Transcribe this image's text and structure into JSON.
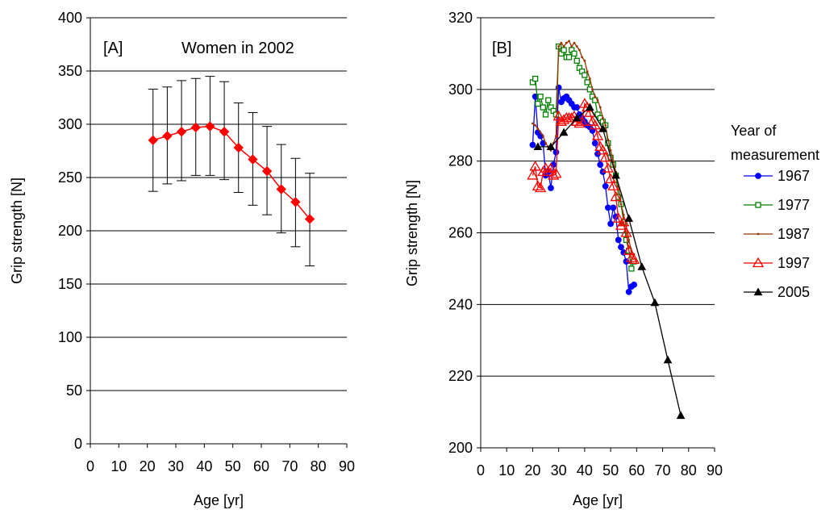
{
  "chart_data": [
    {
      "id": "A",
      "type": "line",
      "panel_label": "[A]",
      "title": "Women in 2002",
      "xlabel": "Age [yr]",
      "ylabel": "Grip strength [N]",
      "xlim": [
        0,
        90
      ],
      "ylim": [
        0,
        400
      ],
      "xticks": [
        0,
        10,
        20,
        30,
        40,
        50,
        60,
        70,
        80,
        90
      ],
      "yticks": [
        0,
        50,
        100,
        150,
        200,
        250,
        300,
        350,
        400
      ],
      "grid": "horizontal",
      "series": [
        {
          "color": "#ff0000",
          "marker": "diamond",
          "points": [
            {
              "x": 22,
              "y": 285,
              "err_low": 237,
              "err_high": 333
            },
            {
              "x": 27,
              "y": 289,
              "err_low": 244,
              "err_high": 335
            },
            {
              "x": 32,
              "y": 293,
              "err_low": 247,
              "err_high": 341
            },
            {
              "x": 37,
              "y": 297,
              "err_low": 252,
              "err_high": 343
            },
            {
              "x": 42,
              "y": 298,
              "err_low": 252,
              "err_high": 345
            },
            {
              "x": 47,
              "y": 293,
              "err_low": 248,
              "err_high": 340
            },
            {
              "x": 52,
              "y": 278,
              "err_low": 236,
              "err_high": 320
            },
            {
              "x": 57,
              "y": 267,
              "err_low": 224,
              "err_high": 311
            },
            {
              "x": 62,
              "y": 256,
              "err_low": 215,
              "err_high": 298
            },
            {
              "x": 67,
              "y": 239,
              "err_low": 198,
              "err_high": 281
            },
            {
              "x": 72,
              "y": 227,
              "err_low": 185,
              "err_high": 268
            },
            {
              "x": 77,
              "y": 211,
              "err_low": 167,
              "err_high": 254
            }
          ]
        }
      ]
    },
    {
      "id": "B",
      "type": "line",
      "panel_label": "[B]",
      "xlabel": "Age [yr]",
      "ylabel": "Grip strength [N]",
      "xlim": [
        0,
        90
      ],
      "ylim": [
        200,
        320
      ],
      "xticks": [
        0,
        10,
        20,
        30,
        40,
        50,
        60,
        70,
        80,
        90
      ],
      "yticks": [
        200,
        220,
        240,
        260,
        280,
        300,
        320
      ],
      "grid": "horizontal",
      "legend_title": "Year of measurement",
      "legend_position": "right",
      "series": [
        {
          "name": "1967",
          "color": "#0000ff",
          "marker": "circle",
          "x": [
            20,
            21,
            22,
            23,
            24,
            25,
            26,
            27,
            28,
            29,
            30,
            31,
            32,
            33,
            34,
            35,
            36,
            37,
            38,
            39,
            40,
            41,
            42,
            43,
            44,
            45,
            46,
            47,
            48,
            49,
            50,
            51,
            52,
            53,
            54,
            55,
            56,
            57,
            58,
            59
          ],
          "y": [
            284.5,
            298,
            288,
            287,
            285,
            276,
            277,
            272.5,
            279,
            282.5,
            300.5,
            296.5,
            297.5,
            298,
            297,
            296,
            295,
            295,
            293,
            292,
            291,
            290,
            289.5,
            288.5,
            285,
            282,
            279,
            277,
            273,
            267,
            262.5,
            267,
            264.5,
            258,
            256,
            254.5,
            252,
            243.5,
            245,
            245.5
          ]
        },
        {
          "name": "1977",
          "color": "#008000",
          "marker": "square",
          "x": [
            20,
            21,
            22,
            23,
            24,
            25,
            26,
            27,
            28,
            29,
            30,
            31,
            32,
            33,
            34,
            35,
            36,
            37,
            38,
            39,
            40,
            41,
            42,
            43,
            44,
            45,
            46,
            47,
            48,
            49,
            50,
            51,
            52,
            53,
            54,
            55,
            56,
            57,
            58,
            59
          ],
          "y": [
            302,
            303,
            296,
            298,
            295,
            293,
            297,
            295,
            294,
            293,
            312,
            310,
            311,
            309,
            309,
            311,
            310,
            308,
            306,
            305,
            304,
            302,
            300,
            298,
            297,
            293,
            292,
            291,
            290,
            285,
            281,
            279,
            276,
            270,
            268,
            263,
            258,
            255,
            250,
            252
          ]
        },
        {
          "name": "1987",
          "color": "#993300",
          "marker": "dot",
          "x": [
            20,
            21,
            22,
            23,
            24,
            25,
            26,
            27,
            28,
            29,
            30,
            31,
            32,
            33,
            34,
            35,
            36,
            37,
            38,
            39,
            40,
            41,
            42,
            43,
            44,
            45,
            46,
            47,
            48,
            49,
            50,
            51,
            52,
            53,
            54,
            55,
            56,
            57,
            58,
            59
          ],
          "y": [
            290.5,
            290,
            289,
            288,
            287,
            285,
            284,
            283,
            285,
            287,
            312,
            313,
            312,
            313,
            313.5,
            312,
            313,
            312,
            311,
            309,
            308,
            305,
            303,
            300,
            298,
            297,
            295,
            292,
            290,
            286,
            283,
            280,
            277,
            273,
            268,
            265,
            262,
            258,
            255,
            254
          ]
        },
        {
          "name": "1997",
          "color": "#ff0000",
          "marker": "triangle-open",
          "x": [
            20,
            21,
            22,
            23,
            24,
            25,
            26,
            27,
            28,
            29,
            30,
            31,
            32,
            33,
            34,
            35,
            36,
            37,
            38,
            39,
            40,
            41,
            42,
            43,
            44,
            45,
            46,
            47,
            48,
            49,
            50,
            51,
            52,
            53,
            54,
            55,
            56,
            57,
            58,
            59
          ],
          "y": [
            276,
            278.5,
            273,
            272.5,
            277,
            278,
            277,
            278,
            276,
            276.5,
            292.5,
            291,
            291.5,
            292,
            292,
            292,
            292.5,
            291,
            290.5,
            291,
            296,
            295,
            293.5,
            291,
            290,
            287,
            284,
            283,
            281,
            278,
            275,
            273,
            270,
            264,
            262,
            263,
            260,
            255,
            253,
            252.5
          ]
        },
        {
          "name": "2005",
          "color": "#000000",
          "marker": "triangle",
          "x": [
            22,
            27,
            32,
            37,
            42,
            47,
            52,
            57,
            62,
            67,
            72,
            77
          ],
          "y": [
            284,
            284,
            288,
            292,
            295,
            289,
            276,
            264,
            250.5,
            240.5,
            224.5,
            209
          ]
        }
      ]
    }
  ]
}
